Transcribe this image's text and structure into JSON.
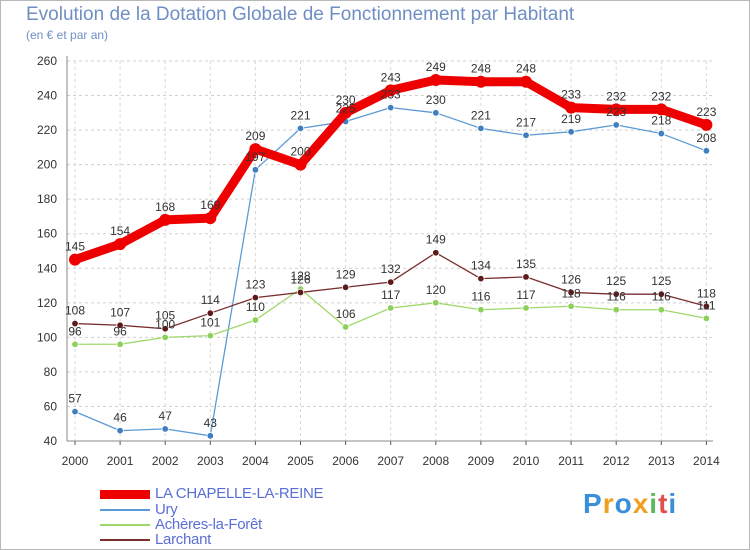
{
  "chart_data": {
    "type": "line",
    "title": "Evolution de la Dotation Globale de Fonctionnement par Habitant",
    "subtitle": "(en € et par an)",
    "xlabel": "",
    "ylabel": "",
    "ylim": [
      40,
      260
    ],
    "yticks": [
      40,
      60,
      80,
      100,
      120,
      140,
      160,
      180,
      200,
      220,
      240,
      260
    ],
    "x": [
      "2000",
      "2001",
      "2002",
      "2003",
      "2004",
      "2005",
      "2006",
      "2007",
      "2008",
      "2009",
      "2010",
      "2011",
      "2012",
      "2013",
      "2014"
    ],
    "grid": "horizontal dashed",
    "legend_position": "bottom-left",
    "series": [
      {
        "name": "Ury",
        "color": "#5b9bd5",
        "marker": "#3d7fc0",
        "values": [
          57,
          46,
          47,
          43,
          197,
          221,
          225,
          233,
          230,
          221,
          217,
          219,
          223,
          218,
          208
        ],
        "labels": [
          "57",
          "46",
          "47",
          "43",
          "197",
          "221",
          "225",
          "233",
          "230",
          "221",
          "217",
          "219",
          "223",
          "218",
          "208"
        ]
      },
      {
        "name": "Achères-la-Forêt",
        "color": "#9ed86a",
        "marker": "#8cd05a",
        "values": [
          96,
          96,
          100,
          101,
          110,
          128,
          106,
          117,
          120,
          116,
          117,
          118,
          116,
          116,
          111
        ],
        "labels": [
          "96",
          "96",
          "100",
          "101",
          "110",
          "128",
          "106",
          "117",
          "120",
          "116",
          "117",
          "118",
          "116",
          "116",
          "111"
        ]
      },
      {
        "name": "Larchant",
        "color": "#7a2e2e",
        "marker": "#5e1a1a",
        "values": [
          108,
          107,
          105,
          114,
          123,
          126,
          129,
          132,
          149,
          134,
          135,
          126,
          125,
          125,
          118
        ],
        "labels": [
          "108",
          "107",
          "105",
          "114",
          "123",
          "126",
          "129",
          "132",
          "149",
          "134",
          "135",
          "126",
          "125",
          "125",
          "118"
        ]
      },
      {
        "name": "LA CHAPELLE-LA-REINE",
        "color": "#ee0000",
        "marker": "#ee0000",
        "values": [
          145,
          154,
          168,
          169,
          209,
          200,
          230,
          243,
          249,
          248,
          248,
          233,
          232,
          232,
          223
        ],
        "labels": [
          "145",
          "154",
          "168",
          "169",
          "209",
          "200",
          "230",
          "243",
          "249",
          "248",
          "248",
          "233",
          "232",
          "232",
          "223"
        ]
      }
    ]
  },
  "legend": {
    "items": [
      {
        "label": "LA CHAPELLE-LA-REINE",
        "color": "#ee0000"
      },
      {
        "label": "Ury",
        "color": "#5b9bd5"
      },
      {
        "label": "Achères-la-Forêt",
        "color": "#9ed86a"
      },
      {
        "label": "Larchant",
        "color": "#7a2e2e"
      }
    ]
  },
  "brand": {
    "letters": [
      "P",
      "r",
      "o",
      "x",
      "i",
      "t",
      "i"
    ],
    "colors": [
      "#3a8fd8",
      "#f0a020",
      "#3a8fd8",
      "#f0a020",
      "#5cb85c",
      "#e05050",
      "#3a8fd8"
    ]
  }
}
